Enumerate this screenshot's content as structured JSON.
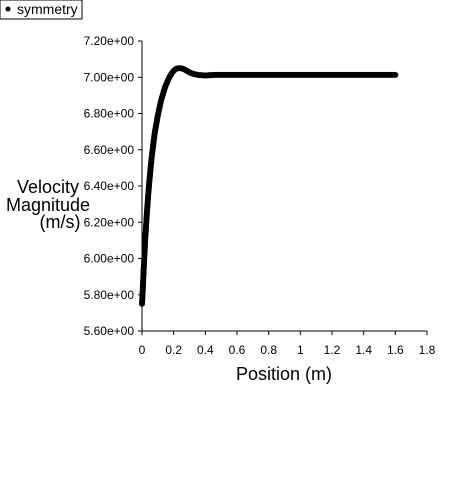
{
  "chart_data": {
    "type": "scatter",
    "title": "",
    "xlabel": "Position (m)",
    "ylabel_lines": [
      "Velocity",
      "Magnitude",
      "(m/s)"
    ],
    "xlim": [
      0,
      1.8
    ],
    "ylim": [
      5.6,
      7.2
    ],
    "x_ticks": [
      "0",
      "0.2",
      "0.4",
      "0.6",
      "0.8",
      "1",
      "1.2",
      "1.4",
      "1.6",
      "1.8"
    ],
    "y_ticks": [
      "5.60e+00",
      "5.80e+00",
      "6.00e+00",
      "6.20e+00",
      "6.40e+00",
      "6.60e+00",
      "6.80e+00",
      "7.00e+00",
      "7.20e+00"
    ],
    "grid": false,
    "legend_position": "top-left",
    "marker_color": "#000000",
    "series": [
      {
        "name": "symmetry",
        "x": [
          0,
          0.005,
          0.01,
          0.02,
          0.03,
          0.04,
          0.05,
          0.06,
          0.07,
          0.08,
          0.09,
          0.1,
          0.11,
          0.12,
          0.13,
          0.14,
          0.15,
          0.16,
          0.17,
          0.18,
          0.19,
          0.2,
          0.21,
          0.22,
          0.23,
          0.24,
          0.25,
          0.26,
          0.27,
          0.28,
          0.29,
          0.3,
          0.32,
          0.34,
          0.36,
          0.38,
          0.4,
          0.42,
          0.44,
          0.46,
          0.48,
          0.5,
          0.55,
          0.6,
          0.7,
          0.8,
          0.9,
          1.0,
          1.1,
          1.2,
          1.3,
          1.4,
          1.5,
          1.6
        ],
        "y": [
          5.75,
          5.83,
          5.93,
          6.1,
          6.24,
          6.36,
          6.46,
          6.55,
          6.62,
          6.69,
          6.74,
          6.79,
          6.83,
          6.87,
          6.9,
          6.93,
          6.955,
          6.975,
          6.995,
          7.01,
          7.025,
          7.035,
          7.043,
          7.048,
          7.05,
          7.05,
          7.049,
          7.046,
          7.042,
          7.037,
          7.032,
          7.027,
          7.02,
          7.015,
          7.012,
          7.011,
          7.01,
          7.011,
          7.012,
          7.013,
          7.013,
          7.013,
          7.013,
          7.013,
          7.013,
          7.013,
          7.013,
          7.013,
          7.013,
          7.013,
          7.013,
          7.013,
          7.013,
          7.013
        ]
      }
    ]
  }
}
